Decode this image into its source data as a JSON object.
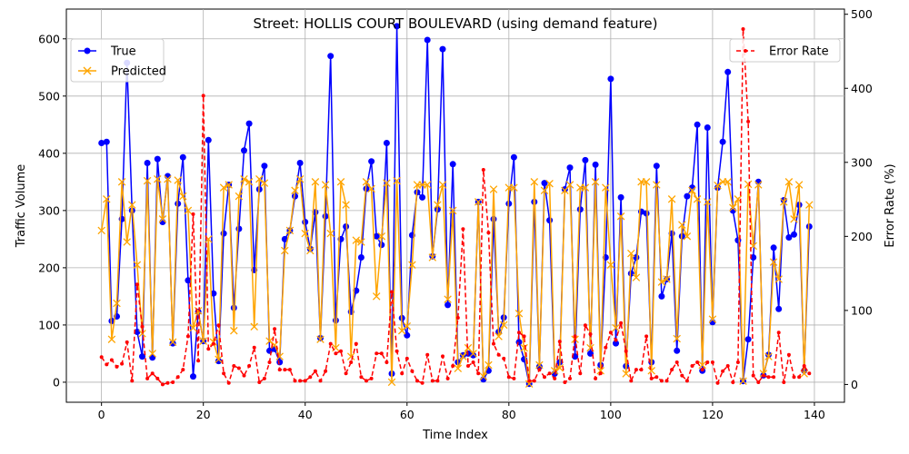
{
  "chart_data": {
    "type": "line",
    "title": "Street: HOLLIS COURT BOULEVARD (using demand feature)",
    "xlabel": "Time Index",
    "ylabel": "Traffic Volume",
    "y2label": "Error Rate (%)",
    "xlim": [
      -6.9,
      145.9
    ],
    "ylim": [
      -35,
      652
    ],
    "y2lim": [
      -24,
      507
    ],
    "xticks": [
      0,
      20,
      40,
      60,
      80,
      100,
      120,
      140
    ],
    "yticks": [
      0,
      100,
      200,
      300,
      400,
      500,
      600
    ],
    "y2ticks": [
      0,
      100,
      200,
      300,
      400,
      500
    ],
    "grid": true,
    "legend_left_position": "upper-left",
    "legend_right_position": "upper-right",
    "x": [
      0,
      1,
      2,
      3,
      4,
      5,
      6,
      7,
      8,
      9,
      10,
      11,
      12,
      13,
      14,
      15,
      16,
      17,
      18,
      19,
      20,
      21,
      22,
      23,
      24,
      25,
      26,
      27,
      28,
      29,
      30,
      31,
      32,
      33,
      34,
      35,
      36,
      37,
      38,
      39,
      40,
      41,
      42,
      43,
      44,
      45,
      46,
      47,
      48,
      49,
      50,
      51,
      52,
      53,
      54,
      55,
      56,
      57,
      58,
      59,
      60,
      61,
      62,
      63,
      64,
      65,
      66,
      67,
      68,
      69,
      70,
      71,
      72,
      73,
      74,
      75,
      76,
      77,
      78,
      79,
      80,
      81,
      82,
      83,
      84,
      85,
      86,
      87,
      88,
      89,
      90,
      91,
      92,
      93,
      94,
      95,
      96,
      97,
      98,
      99,
      100,
      101,
      102,
      103,
      104,
      105,
      106,
      107,
      108,
      109,
      110,
      111,
      112,
      113,
      114,
      115,
      116,
      117,
      118,
      119,
      120,
      121,
      122,
      123,
      124,
      125,
      126,
      127,
      128,
      129,
      130,
      131,
      132,
      133,
      134,
      135,
      136,
      137,
      138,
      139
    ],
    "series": [
      {
        "name": "True",
        "axis": "left",
        "color": "#0000ff",
        "marker": "circle",
        "values": [
          418,
          420,
          107,
          115,
          285,
          558,
          300,
          88,
          45,
          383,
          43,
          390,
          280,
          360,
          68,
          312,
          393,
          178,
          10,
          123,
          72,
          423,
          155,
          37,
          260,
          345,
          130,
          268,
          405,
          452,
          196,
          337,
          378,
          55,
          58,
          35,
          250,
          265,
          325,
          383,
          280,
          233,
          297,
          77,
          290,
          570,
          108,
          250,
          272,
          123,
          160,
          218,
          338,
          386,
          255,
          240,
          418,
          15,
          622,
          112,
          82,
          257,
          332,
          323,
          598,
          220,
          302,
          582,
          135,
          381,
          35,
          47,
          50,
          47,
          315,
          5,
          20,
          285,
          88,
          113,
          312,
          393,
          70,
          40,
          -3,
          315,
          27,
          348,
          283,
          15,
          35,
          337,
          375,
          45,
          302,
          388,
          50,
          380,
          30,
          218,
          530,
          68,
          323,
          28,
          190,
          218,
          298,
          295,
          35,
          378,
          150,
          180,
          260,
          55,
          255,
          325,
          340,
          450,
          20,
          445,
          105,
          340,
          420,
          542,
          300,
          248,
          2,
          75,
          218,
          350,
          12,
          48,
          235,
          128,
          318,
          253,
          258,
          310,
          20,
          272
        ]
      },
      {
        "name": "Predicted",
        "axis": "left",
        "color": "#ffa500",
        "marker": "x",
        "values": [
          265,
          320,
          75,
          138,
          350,
          245,
          310,
          205,
          85,
          352,
          50,
          355,
          285,
          355,
          70,
          353,
          325,
          300,
          95,
          125,
          72,
          250,
          70,
          40,
          340,
          345,
          90,
          325,
          355,
          350,
          97,
          355,
          348,
          72,
          65,
          45,
          230,
          265,
          335,
          355,
          260,
          230,
          350,
          75,
          345,
          260,
          60,
          350,
          310,
          45,
          248,
          245,
          350,
          338,
          150,
          255,
          348,
          0,
          352,
          90,
          98,
          205,
          345,
          345,
          345,
          218,
          310,
          345,
          145,
          300,
          24,
          45,
          60,
          50,
          315,
          10,
          30,
          337,
          80,
          100,
          340,
          340,
          120,
          60,
          -3,
          350,
          30,
          335,
          347,
          20,
          25,
          335,
          345,
          75,
          340,
          340,
          60,
          350,
          20,
          340,
          205,
          95,
          290,
          15,
          225,
          183,
          350,
          350,
          20,
          345,
          175,
          180,
          320,
          76,
          275,
          255,
          335,
          320,
          30,
          315,
          110,
          344,
          350,
          350,
          305,
          320,
          2,
          346,
          238,
          345,
          15,
          45,
          210,
          180,
          315,
          350,
          285,
          345,
          15,
          310
        ]
      },
      {
        "name": "Error Rate",
        "axis": "right",
        "color": "#ff0000",
        "marker": "dot",
        "dashed": true,
        "values": [
          37,
          27,
          33,
          24,
          28,
          57,
          5,
          135,
          78,
          8,
          15,
          8,
          0,
          2,
          3,
          10,
          20,
          65,
          230,
          32,
          390,
          48,
          55,
          80,
          15,
          2,
          25,
          22,
          12,
          25,
          50,
          3,
          8,
          30,
          75,
          20,
          20,
          20,
          5,
          5,
          5,
          10,
          18,
          5,
          18,
          55,
          42,
          45,
          15,
          30,
          55,
          10,
          5,
          8,
          42,
          42,
          30,
          125,
          45,
          15,
          35,
          18,
          5,
          2,
          40,
          5,
          5,
          38,
          8,
          25,
          90,
          210,
          25,
          30,
          15,
          290,
          205,
          55,
          40,
          35,
          10,
          8,
          70,
          65,
          5,
          5,
          20,
          10,
          15,
          8,
          58,
          3,
          8,
          65,
          15,
          80,
          68,
          8,
          15,
          50,
          70,
          60,
          83,
          45,
          5,
          20,
          20,
          65,
          8,
          10,
          5,
          5,
          20,
          30,
          12,
          5,
          25,
          30,
          20,
          30,
          30,
          2,
          18,
          25,
          3,
          30,
          480,
          355,
          12,
          3,
          12,
          10,
          10,
          70,
          3,
          40,
          10,
          10,
          25,
          15
        ]
      }
    ]
  }
}
